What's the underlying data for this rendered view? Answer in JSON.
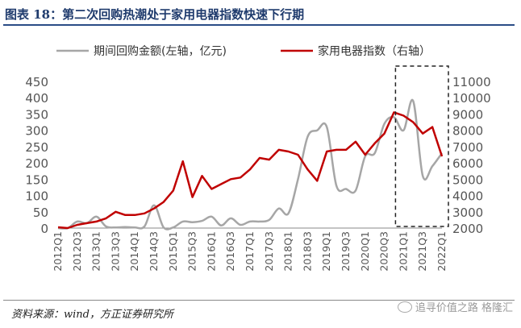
{
  "figure": {
    "title": "图表 18：第二次回购热潮处于家用电器指数快速下行期",
    "source": "资料来源：wind，方正证券研究所",
    "watermark": "追寻价值之路 格隆汇"
  },
  "colors": {
    "buyback": "#a6a6a6",
    "index": "#c00000",
    "title": "#1f3b6d"
  },
  "chart_data": {
    "type": "line",
    "x": [
      "2012Q1",
      "2012Q2",
      "2012Q3",
      "2012Q4",
      "2013Q1",
      "2013Q2",
      "2013Q3",
      "2013Q4",
      "2014Q1",
      "2014Q2",
      "2014Q3",
      "2014Q4",
      "2015Q1",
      "2015Q2",
      "2015Q3",
      "2015Q4",
      "2016Q1",
      "2016Q2",
      "2016Q3",
      "2016Q4",
      "2017Q1",
      "2017Q2",
      "2017Q3",
      "2017Q4",
      "2018Q1",
      "2018Q2",
      "2018Q3",
      "2018Q4",
      "2019Q1",
      "2019Q2",
      "2019Q3",
      "2019Q4",
      "2020Q1",
      "2020Q2",
      "2020Q3",
      "2020Q4",
      "2021Q1",
      "2021Q2",
      "2021Q3",
      "2021Q4",
      "2022Q1"
    ],
    "xtick_labels": [
      "2012Q1",
      "2012Q3",
      "2013Q1",
      "2013Q3",
      "2014Q1",
      "2014Q3",
      "2015Q1",
      "2015Q3",
      "2016Q1",
      "2016Q3",
      "2017Q1",
      "2017Q3",
      "2018Q1",
      "2018Q3",
      "2019Q1",
      "2019Q3",
      "2020Q1",
      "2020Q3",
      "2021Q1",
      "2021Q3",
      "2022Q1"
    ],
    "series": [
      {
        "name": "期间回购金额(左轴，亿元)",
        "axis": "left",
        "values": [
          0,
          0,
          20,
          15,
          35,
          5,
          2,
          3,
          2,
          5,
          70,
          2,
          2,
          20,
          18,
          22,
          35,
          8,
          30,
          10,
          20,
          20,
          25,
          60,
          45,
          150,
          280,
          300,
          310,
          130,
          120,
          115,
          220,
          230,
          320,
          340,
          300,
          390,
          160,
          190,
          230
        ]
      },
      {
        "name": "家用电器指数（右轴）",
        "axis": "right",
        "values": [
          2050,
          2000,
          2200,
          2300,
          2400,
          2600,
          3000,
          2800,
          2800,
          2900,
          3200,
          3600,
          4300,
          6100,
          3900,
          5200,
          4400,
          4700,
          5000,
          5100,
          5600,
          6300,
          6200,
          6800,
          6700,
          6500,
          5600,
          4900,
          6700,
          6800,
          6800,
          7300,
          6500,
          7200,
          7800,
          9100,
          8900,
          8500,
          7800,
          8200,
          6400
        ]
      }
    ],
    "yleft": {
      "min": 0,
      "max": 450,
      "ticks": [
        0,
        50,
        100,
        150,
        200,
        250,
        300,
        350,
        400,
        450
      ]
    },
    "yright": {
      "min": 2000,
      "max": 11000,
      "ticks": [
        2000,
        3000,
        4000,
        5000,
        6000,
        7000,
        8000,
        9000,
        10000,
        11000
      ]
    },
    "highlight": {
      "from": "2021Q1",
      "to": "2022Q1",
      "style": "dashed-box"
    },
    "legend": {
      "placement": "top-center"
    },
    "grid": false
  }
}
